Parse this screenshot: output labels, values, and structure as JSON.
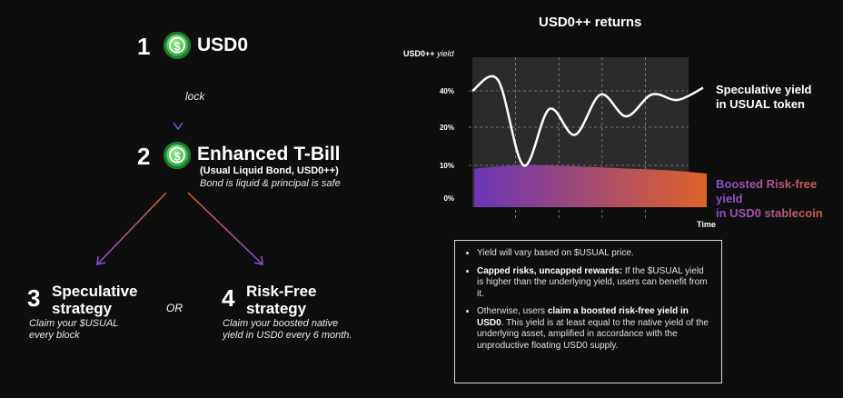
{
  "step1": {
    "number": "1",
    "label": "USD0",
    "coin_symbol": "$"
  },
  "lock_label": "lock",
  "step2": {
    "number": "2",
    "title": "Enhanced T-Bill",
    "subtitle": "(Usual Liquid Bond, USD0++)",
    "note": "Bond is liquid & principal is safe",
    "coin_symbol": "$"
  },
  "step3": {
    "number": "3",
    "title_line1": "Speculative",
    "title_line2": "strategy",
    "desc_line1": "Claim your $USUAL",
    "desc_line2": "every block"
  },
  "or_label": "OR",
  "step4": {
    "number": "4",
    "title_line1": "Risk-Free",
    "title_line2": "strategy",
    "desc_line1": "Claim your boosted native",
    "desc_line2": "yield in USD0 every 6 month."
  },
  "chart_data": {
    "type": "area",
    "title": "USD0++ returns",
    "ylabel_main": "USD0++",
    "ylabel_sub": "yield",
    "xlabel": "Time",
    "y_ticks": [
      "40%",
      "20%",
      "10%",
      "0%"
    ],
    "series": [
      {
        "name": "Speculative yield in USUAL token",
        "name_line1": "Speculative yield",
        "name_line2": "in USUAL token",
        "color": "#ffffff",
        "values": [
          40,
          47,
          10,
          30,
          18,
          38,
          26,
          38,
          35,
          42
        ]
      },
      {
        "name": "Boosted Risk-free yield in USD0 stablecoin",
        "name_line1": "Boosted Risk-free yield",
        "name_line2": "in USD0 stablecoin",
        "color_start": "#6a35b8",
        "color_end": "#e0622a",
        "values": [
          9,
          10,
          10,
          9.5,
          9,
          8.5,
          7.5
        ]
      }
    ],
    "grid": true
  },
  "notes": {
    "item1": "Yield will vary based on $USUAL price.",
    "item2_bold": "Capped risks, uncapped rewards:",
    "item2_rest": " If the $USUAL yield is higher than the underlying yield, users can benefit from it.",
    "item3_pre": "Otherwise, users ",
    "item3_bold": "claim a boosted risk-free yield in USD0",
    "item3_rest": ". This yield is at least equal to the native yield of the underlying asset, amplified in accordance with the unproductive floating USD0 supply."
  },
  "colors": {
    "background": "#0e0e0e",
    "arrow_purple": "#8a4fd6",
    "arrow_orange": "#e0622a",
    "coin_green": "#27a43c"
  }
}
